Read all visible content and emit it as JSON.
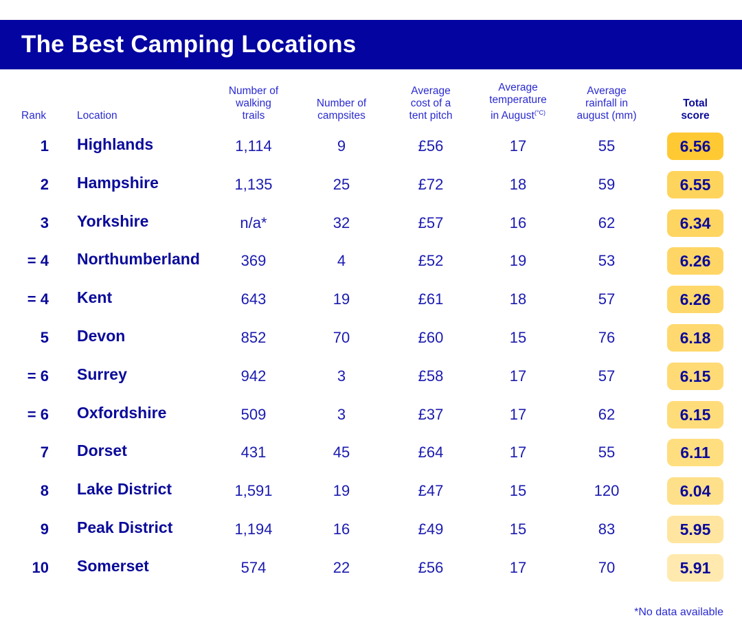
{
  "title": "The Best Camping Locations",
  "colors": {
    "title_bar": "#0404a0",
    "text": "#0a0a9a",
    "badge_scale": [
      "#ffc933",
      "#ffd45c",
      "#ffd561",
      "#ffd666",
      "#ffd86b",
      "#ffd970",
      "#ffda75",
      "#ffdc7a",
      "#ffde80",
      "#ffe08a",
      "#ffe59f",
      "#ffe9ae"
    ]
  },
  "headers": {
    "rank": "Rank",
    "location": "Location",
    "trails": "Number of\nwalking\ntrails",
    "campsites": "Number of\ncampsites",
    "cost": "Average\ncost of a\ntent pitch",
    "temp": "Average\ntemperature\nin August",
    "temp_unit": "(°C)",
    "rain": "Average\nrainfall in\naugust (mm)",
    "score": "Total\nscore"
  },
  "rows": [
    {
      "rank": "1",
      "location": "Highlands",
      "trails": "1,114",
      "campsites": "9",
      "cost": "£56",
      "temp": "17",
      "rain": "55",
      "score": "6.56"
    },
    {
      "rank": "2",
      "location": "Hampshire",
      "trails": "1,135",
      "campsites": "25",
      "cost": "£72",
      "temp": "18",
      "rain": "59",
      "score": "6.55"
    },
    {
      "rank": "3",
      "location": "Yorkshire",
      "trails": "n/a*",
      "campsites": "32",
      "cost": "£57",
      "temp": "16",
      "rain": "62",
      "score": "6.34"
    },
    {
      "rank": "= 4",
      "location": "Northumberland",
      "trails": "369",
      "campsites": "4",
      "cost": "£52",
      "temp": "19",
      "rain": "53",
      "score": "6.26"
    },
    {
      "rank": "= 4",
      "location": "Kent",
      "trails": "643",
      "campsites": "19",
      "cost": "£61",
      "temp": "18",
      "rain": "57",
      "score": "6.26"
    },
    {
      "rank": "5",
      "location": "Devon",
      "trails": "852",
      "campsites": "70",
      "cost": "£60",
      "temp": "15",
      "rain": "76",
      "score": "6.18"
    },
    {
      "rank": "= 6",
      "location": "Surrey",
      "trails": "942",
      "campsites": "3",
      "cost": "£58",
      "temp": "17",
      "rain": "57",
      "score": "6.15"
    },
    {
      "rank": "= 6",
      "location": "Oxfordshire",
      "trails": "509",
      "campsites": "3",
      "cost": "£37",
      "temp": "17",
      "rain": "62",
      "score": "6.15"
    },
    {
      "rank": "7",
      "location": "Dorset",
      "trails": "431",
      "campsites": "45",
      "cost": "£64",
      "temp": "17",
      "rain": "55",
      "score": "6.11"
    },
    {
      "rank": "8",
      "location": "Lake District",
      "trails": "1,591",
      "campsites": "19",
      "cost": "£47",
      "temp": "15",
      "rain": "120",
      "score": "6.04"
    },
    {
      "rank": "9",
      "location": "Peak District",
      "trails": "1,194",
      "campsites": "16",
      "cost": "£49",
      "temp": "15",
      "rain": "83",
      "score": "5.95"
    },
    {
      "rank": "10",
      "location": "Somerset",
      "trails": "574",
      "campsites": "22",
      "cost": "£56",
      "temp": "17",
      "rain": "70",
      "score": "5.91"
    }
  ],
  "footnote": "*No data available",
  "chart_data": {
    "type": "table",
    "title": "The Best Camping Locations",
    "columns": [
      "Rank",
      "Location",
      "Number of walking trails",
      "Number of campsites",
      "Average cost of a tent pitch",
      "Average temperature in August (°C)",
      "Average rainfall in august (mm)",
      "Total score"
    ],
    "rows": [
      [
        "1",
        "Highlands",
        "1,114",
        9,
        "£56",
        17,
        55,
        6.56
      ],
      [
        "2",
        "Hampshire",
        "1,135",
        25,
        "£72",
        18,
        59,
        6.55
      ],
      [
        "3",
        "Yorkshire",
        "n/a*",
        32,
        "£57",
        16,
        62,
        6.34
      ],
      [
        "= 4",
        "Northumberland",
        "369",
        4,
        "£52",
        19,
        53,
        6.26
      ],
      [
        "= 4",
        "Kent",
        "643",
        19,
        "£61",
        18,
        57,
        6.26
      ],
      [
        "5",
        "Devon",
        "852",
        70,
        "£60",
        15,
        76,
        6.18
      ],
      [
        "= 6",
        "Surrey",
        "942",
        3,
        "£58",
        17,
        57,
        6.15
      ],
      [
        "= 6",
        "Oxfordshire",
        "509",
        3,
        "£37",
        17,
        62,
        6.15
      ],
      [
        "7",
        "Dorset",
        "431",
        45,
        "£64",
        17,
        55,
        6.11
      ],
      [
        "8",
        "Lake District",
        "1,591",
        19,
        "£47",
        15,
        120,
        6.04
      ],
      [
        "9",
        "Peak District",
        "1,194",
        16,
        "£49",
        15,
        83,
        5.95
      ],
      [
        "10",
        "Somerset",
        "574",
        22,
        "£56",
        17,
        70,
        5.91
      ]
    ],
    "footnote": "*No data available"
  }
}
